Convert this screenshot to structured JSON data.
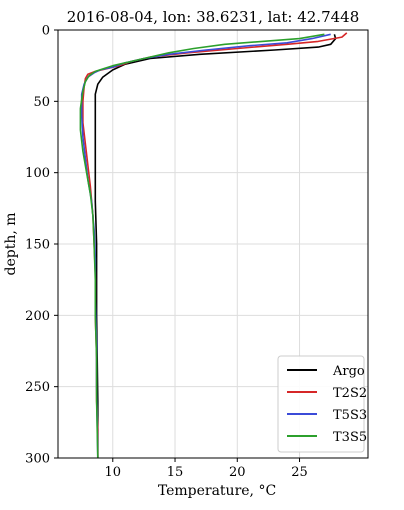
{
  "chart_data": {
    "type": "line",
    "title": "2016-08-04, lon: 38.6231,  lat: 42.7448",
    "xlabel": "Temperature, °C",
    "ylabel": "depth, m",
    "xlim": [
      5.6,
      30.5
    ],
    "ylim": [
      300,
      0
    ],
    "y_inverted": true,
    "xticks": [
      10,
      15,
      20,
      25
    ],
    "yticks": [
      0,
      50,
      100,
      150,
      200,
      250,
      300
    ],
    "grid": true,
    "legend_position": "lower-right",
    "series": [
      {
        "name": "Argo",
        "color": "#000000",
        "points": [
          [
            27.8,
            3
          ],
          [
            27.9,
            6
          ],
          [
            27.5,
            10
          ],
          [
            26.5,
            12
          ],
          [
            23.0,
            14
          ],
          [
            17.0,
            17
          ],
          [
            13.0,
            20
          ],
          [
            11.0,
            24
          ],
          [
            10.0,
            28
          ],
          [
            9.2,
            33
          ],
          [
            8.8,
            38
          ],
          [
            8.6,
            45
          ],
          [
            8.6,
            60
          ],
          [
            8.6,
            80
          ],
          [
            8.6,
            100
          ],
          [
            8.6,
            120
          ],
          [
            8.7,
            150
          ],
          [
            8.7,
            180
          ],
          [
            8.7,
            200
          ],
          [
            8.75,
            230
          ],
          [
            8.8,
            260
          ],
          [
            8.8,
            280
          ],
          [
            8.8,
            300
          ]
        ]
      },
      {
        "name": "T2S2",
        "color": "#d62728",
        "points": [
          [
            28.8,
            2
          ],
          [
            28.4,
            5
          ],
          [
            26.5,
            8
          ],
          [
            24.0,
            10
          ],
          [
            20.0,
            13
          ],
          [
            16.0,
            16
          ],
          [
            13.0,
            19
          ],
          [
            11.5,
            22
          ],
          [
            10.5,
            25
          ],
          [
            9.6,
            27
          ],
          [
            8.6,
            29
          ],
          [
            8.0,
            31
          ],
          [
            7.8,
            34
          ],
          [
            7.7,
            40
          ],
          [
            7.6,
            50
          ],
          [
            7.6,
            65
          ],
          [
            7.8,
            80
          ],
          [
            8.0,
            95
          ],
          [
            8.2,
            110
          ],
          [
            8.4,
            130
          ],
          [
            8.5,
            150
          ],
          [
            8.6,
            170
          ],
          [
            8.6,
            200
          ],
          [
            8.7,
            230
          ],
          [
            8.7,
            260
          ],
          [
            8.8,
            280
          ],
          [
            8.8,
            300
          ]
        ]
      },
      {
        "name": "T5S3",
        "color": "#3b4bd8",
        "points": [
          [
            27.5,
            3
          ],
          [
            26.0,
            6
          ],
          [
            24.0,
            9
          ],
          [
            21.0,
            11
          ],
          [
            17.5,
            14
          ],
          [
            14.5,
            17
          ],
          [
            12.5,
            20
          ],
          [
            11.0,
            23
          ],
          [
            10.0,
            26
          ],
          [
            9.0,
            28
          ],
          [
            8.5,
            30
          ],
          [
            8.0,
            33
          ],
          [
            7.7,
            38
          ],
          [
            7.5,
            45
          ],
          [
            7.5,
            60
          ],
          [
            7.6,
            75
          ],
          [
            7.8,
            90
          ],
          [
            8.0,
            105
          ],
          [
            8.3,
            120
          ],
          [
            8.5,
            140
          ],
          [
            8.6,
            160
          ],
          [
            8.6,
            190
          ],
          [
            8.7,
            220
          ],
          [
            8.7,
            250
          ],
          [
            8.75,
            275
          ],
          [
            8.8,
            300
          ]
        ]
      },
      {
        "name": "T3S5",
        "color": "#2ca02c",
        "points": [
          [
            27.0,
            3
          ],
          [
            25.0,
            6
          ],
          [
            22.0,
            8
          ],
          [
            19.0,
            10
          ],
          [
            16.5,
            13
          ],
          [
            14.5,
            16
          ],
          [
            12.5,
            20
          ],
          [
            11.0,
            23
          ],
          [
            10.0,
            25
          ],
          [
            9.3,
            27
          ],
          [
            8.6,
            29
          ],
          [
            8.1,
            32
          ],
          [
            7.8,
            36
          ],
          [
            7.6,
            43
          ],
          [
            7.4,
            55
          ],
          [
            7.4,
            70
          ],
          [
            7.6,
            85
          ],
          [
            7.9,
            100
          ],
          [
            8.2,
            115
          ],
          [
            8.4,
            130
          ],
          [
            8.5,
            150
          ],
          [
            8.6,
            175
          ],
          [
            8.6,
            200
          ],
          [
            8.7,
            230
          ],
          [
            8.7,
            260
          ],
          [
            8.8,
            300
          ]
        ]
      }
    ]
  }
}
